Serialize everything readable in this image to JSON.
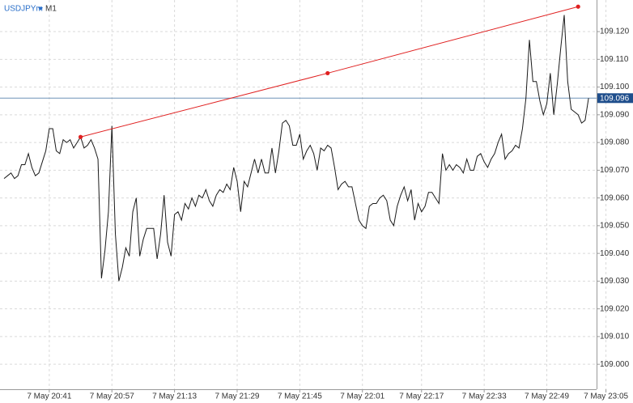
{
  "chart_data": {
    "type": "line",
    "symbol": "USDJPYm",
    "timeframe": "M1",
    "categories": [
      null,
      null,
      null,
      null,
      null,
      null,
      null,
      null,
      null,
      null,
      null,
      null,
      null,
      "7 May 20:41",
      null,
      null,
      null,
      null,
      null,
      null,
      null,
      null,
      null,
      null,
      null,
      null,
      null,
      null,
      null,
      null,
      null,
      "7 May 20:57",
      null,
      null,
      null,
      null,
      null,
      null,
      null,
      null,
      null,
      null,
      null,
      null,
      null,
      null,
      null,
      null,
      null,
      "7 May 21:13",
      null,
      null,
      null,
      null,
      null,
      null,
      null,
      null,
      null,
      null,
      null,
      null,
      null,
      null,
      null,
      null,
      null,
      "7 May 21:29",
      null,
      null,
      null,
      null,
      null,
      null,
      null,
      null,
      null,
      null,
      null,
      null,
      null,
      null,
      null,
      null,
      null,
      "7 May 21:45",
      null,
      null,
      null,
      null,
      null,
      null,
      null,
      null,
      null,
      null,
      null,
      null,
      null,
      null,
      null,
      null,
      null,
      "7 May 22:01",
      null,
      null,
      null,
      null,
      null,
      null,
      null,
      null,
      null,
      null,
      null,
      null,
      null,
      null,
      null,
      null,
      "7 May 22:17",
      null,
      null,
      null,
      null,
      null,
      null,
      null,
      null,
      null,
      null,
      null,
      null,
      null,
      null,
      null,
      null,
      null,
      "7 May 22:33",
      null,
      null,
      null,
      null,
      null,
      null,
      null,
      null,
      null,
      null,
      null,
      null,
      null,
      null,
      null,
      null,
      null,
      "7 May 22:49",
      null,
      null,
      null,
      null,
      null,
      null,
      null,
      null,
      null,
      null,
      null,
      null,
      null,
      null,
      null,
      null,
      "7 May 23:05"
    ],
    "series": [
      {
        "color": "#1a1a1a",
        "values": [
          109.067,
          109.068,
          109.069,
          109.067,
          109.068,
          109.072,
          109.072,
          109.076,
          109.071,
          109.068,
          109.069,
          109.073,
          109.077,
          109.085,
          109.085,
          109.077,
          109.076,
          109.081,
          109.08,
          109.081,
          109.078,
          109.08,
          109.082,
          109.078,
          109.079,
          109.081,
          109.078,
          109.074,
          109.031,
          109.041,
          109.055,
          109.086,
          109.047,
          109.03,
          109.035,
          109.042,
          109.039,
          109.055,
          109.06,
          109.039,
          109.045,
          109.049,
          109.049,
          109.049,
          109.038,
          109.047,
          109.061,
          109.044,
          109.039,
          109.054,
          109.055,
          109.052,
          109.058,
          109.056,
          109.06,
          109.057,
          109.061,
          109.06,
          109.063,
          109.059,
          109.057,
          109.061,
          109.063,
          109.062,
          109.065,
          109.063,
          109.071,
          109.066,
          109.055,
          109.066,
          109.064,
          109.069,
          109.074,
          109.069,
          109.074,
          109.069,
          109.069,
          109.078,
          109.069,
          109.077,
          109.087,
          109.088,
          109.086,
          109.079,
          109.079,
          109.083,
          109.074,
          109.077,
          109.079,
          109.076,
          109.07,
          109.078,
          109.077,
          109.079,
          109.078,
          109.071,
          109.063,
          109.065,
          109.066,
          109.064,
          109.064,
          109.058,
          109.052,
          109.05,
          109.049,
          109.057,
          109.058,
          109.058,
          109.06,
          109.061,
          109.059,
          109.052,
          109.05,
          109.057,
          109.061,
          109.064,
          109.059,
          109.063,
          109.052,
          109.058,
          109.055,
          109.057,
          109.062,
          109.062,
          109.06,
          109.058,
          109.076,
          109.07,
          109.072,
          109.07,
          109.072,
          109.071,
          109.069,
          109.074,
          109.07,
          109.07,
          109.075,
          109.076,
          109.073,
          109.071,
          109.074,
          109.076,
          109.08,
          109.083,
          109.074,
          109.076,
          109.077,
          109.079,
          109.078,
          109.085,
          109.096,
          109.117,
          109.102,
          109.102,
          109.095,
          109.09,
          109.094,
          109.105,
          109.09,
          109.101,
          109.114,
          109.126,
          109.102,
          109.092,
          109.091,
          109.09,
          109.087,
          109.088,
          109.096,
          null,
          null,
          null,
          null,
          null
        ]
      },
      {
        "color": "#e02020",
        "values": [
          null,
          null,
          null,
          null,
          null,
          null,
          null,
          null,
          null,
          null,
          null,
          null,
          null,
          null,
          null,
          null,
          null,
          null,
          null,
          null,
          null,
          null,
          109.082,
          null,
          null,
          null,
          null,
          null,
          null,
          null,
          null,
          null,
          null,
          null,
          null,
          null,
          null,
          null,
          null,
          null,
          null,
          null,
          null,
          null,
          null,
          null,
          null,
          null,
          null,
          null,
          null,
          null,
          null,
          null,
          null,
          null,
          null,
          null,
          null,
          null,
          null,
          null,
          null,
          null,
          null,
          null,
          null,
          null,
          null,
          null,
          null,
          null,
          null,
          null,
          null,
          null,
          null,
          null,
          null,
          null,
          null,
          null,
          null,
          null,
          null,
          null,
          null,
          null,
          null,
          null,
          null,
          null,
          null,
          109.105,
          null,
          null,
          null,
          null,
          null,
          null,
          null,
          null,
          null,
          null,
          null,
          null,
          null,
          null,
          null,
          null,
          null,
          null,
          null,
          null,
          null,
          null,
          null,
          null,
          null,
          null,
          null,
          null,
          null,
          null,
          null,
          null,
          null,
          null,
          null,
          null,
          null,
          null,
          null,
          null,
          null,
          null,
          null,
          null,
          null,
          null,
          null,
          null,
          null,
          null,
          null,
          null,
          null,
          null,
          null,
          null,
          null,
          null,
          null,
          null,
          null,
          null,
          null,
          null,
          null,
          null,
          null,
          null,
          null,
          null,
          null,
          109.129,
          null,
          null,
          null,
          null,
          null,
          null,
          null,
          null
        ]
      }
    ],
    "current_price": 109.096,
    "current_price_color": "#1f4e8c",
    "ylim": [
      108.991,
      109.1314
    ],
    "yticks": [
      {
        "value": 109,
        "label": "109.000"
      },
      {
        "value": 109.01,
        "label": "109.010"
      },
      {
        "value": 109.02,
        "label": "109.020"
      },
      {
        "value": 109.03,
        "label": "109.030"
      },
      {
        "value": 109.04,
        "label": "109.040"
      },
      {
        "value": 109.05,
        "label": "109.050"
      },
      {
        "value": 109.06,
        "label": "109.060"
      },
      {
        "value": 109.07,
        "label": "109.070"
      },
      {
        "value": 109.08,
        "label": "109.080"
      },
      {
        "value": 109.09,
        "label": "109.090"
      },
      {
        "value": 109.1,
        "label": "109.100"
      },
      {
        "value": 109.11,
        "label": "109.110"
      },
      {
        "value": 109.12,
        "label": "109.120"
      }
    ],
    "grid": true
  }
}
